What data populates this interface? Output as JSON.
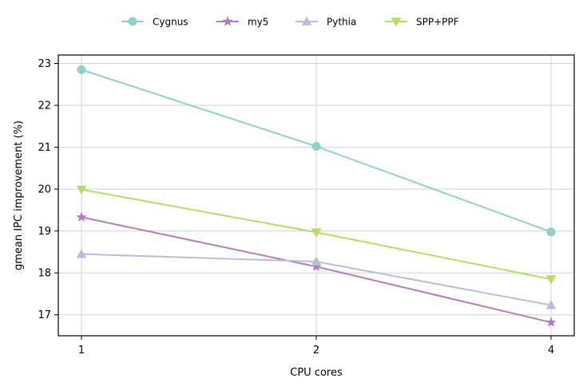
{
  "chart_data": {
    "type": "line",
    "title": "",
    "xlabel": "CPU cores",
    "ylabel": "gmean IPC improvement (%)",
    "categories": [
      "1",
      "2",
      "4"
    ],
    "ylim": [
      16.5,
      23.2
    ],
    "yticks": [
      17,
      18,
      19,
      20,
      21,
      22,
      23
    ],
    "grid": true,
    "legend_position": "top-center",
    "series": [
      {
        "name": "Cygnus",
        "marker": "circle",
        "color": "#8dd3c7",
        "values": [
          22.85,
          21.02,
          18.98
        ]
      },
      {
        "name": "my5",
        "marker": "star",
        "color": "#b77bbd",
        "values": [
          19.33,
          18.15,
          16.82
        ]
      },
      {
        "name": "Pythia",
        "marker": "triangle-up",
        "color": "#bcbcdc",
        "values": [
          18.45,
          18.27,
          17.23
        ]
      },
      {
        "name": "SPP+PPF",
        "marker": "triangle-down",
        "color": "#b3de69",
        "values": [
          19.99,
          18.97,
          17.85
        ]
      }
    ]
  }
}
